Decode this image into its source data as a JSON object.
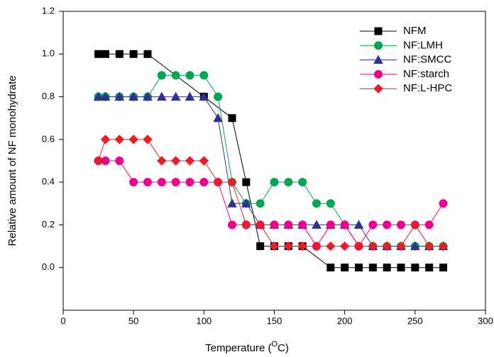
{
  "chart_data": {
    "type": "line",
    "x_label": [
      "Temperature (",
      "O",
      "C)"
    ],
    "y_label": "Relative amount of NF monohydrate",
    "xlim": [
      0,
      300
    ],
    "xticks": [
      0,
      50,
      100,
      150,
      200,
      250,
      300
    ],
    "ylim": [
      -0.2,
      1.2
    ],
    "yticks": [
      {
        "value": 0,
        "label": "0.0"
      },
      {
        "value": 0.2,
        "label": "0.2"
      },
      {
        "value": 0.4,
        "label": "0.4"
      },
      {
        "value": 0.6,
        "label": "0.6"
      },
      {
        "value": 0.8,
        "label": "0.8"
      },
      {
        "value": 1.0,
        "label": "1.0"
      },
      {
        "value": 1.2,
        "label": "1.2"
      }
    ],
    "legend": "top-right",
    "series": [
      {
        "name": "NFM",
        "color": "#000000",
        "marker": "square",
        "x": [
          25,
          30,
          40,
          50,
          60,
          100,
          120,
          130,
          140,
          150,
          160,
          170,
          190,
          200,
          210,
          220,
          230,
          240,
          250,
          260,
          270
        ],
        "values": [
          1.0,
          1.0,
          1.0,
          1.0,
          1.0,
          0.8,
          0.7,
          0.4,
          0.1,
          0.1,
          0.1,
          0.1,
          0,
          0,
          0,
          0,
          0,
          0,
          0,
          0,
          0
        ]
      },
      {
        "name": "NF:LMH",
        "color": "#00a651",
        "marker": "circle",
        "x": [
          25,
          30,
          40,
          50,
          60,
          70,
          80,
          90,
          100,
          110,
          120,
          130,
          140,
          150,
          160,
          170,
          180,
          190,
          200,
          210,
          220,
          230,
          240,
          250,
          260,
          270
        ],
        "values": [
          0.8,
          0.8,
          0.8,
          0.8,
          0.8,
          0.9,
          0.9,
          0.9,
          0.9,
          0.8,
          0.4,
          0.3,
          0.3,
          0.4,
          0.4,
          0.4,
          0.3,
          0.3,
          0.2,
          0.1,
          0.1,
          0.1,
          0.1,
          0.1,
          0.1,
          0.1
        ]
      },
      {
        "name": "NF:SMCC",
        "color": "#2e3192",
        "marker": "triangle",
        "x": [
          25,
          30,
          40,
          50,
          60,
          70,
          80,
          90,
          100,
          110,
          120,
          130,
          140,
          150,
          160,
          170,
          180,
          190,
          200,
          210,
          220,
          230,
          240,
          250,
          260,
          270
        ],
        "values": [
          0.8,
          0.8,
          0.8,
          0.8,
          0.8,
          0.8,
          0.8,
          0.8,
          0.8,
          0.7,
          0.3,
          0.3,
          0.2,
          0.2,
          0.2,
          0.2,
          0.2,
          0.2,
          0.2,
          0.2,
          0.1,
          0.1,
          0.1,
          0.1,
          0.1,
          0.1
        ]
      },
      {
        "name": "NF:starch",
        "color": "#ec008c",
        "marker": "circle",
        "x": [
          25,
          30,
          40,
          50,
          60,
          70,
          80,
          90,
          100,
          110,
          120,
          130,
          140,
          150,
          160,
          170,
          180,
          190,
          200,
          210,
          220,
          230,
          240,
          250,
          260,
          270
        ],
        "values": [
          0.5,
          0.5,
          0.5,
          0.4,
          0.4,
          0.4,
          0.4,
          0.4,
          0.4,
          0.4,
          0.2,
          0.2,
          0.2,
          0.2,
          0.2,
          0.2,
          0.1,
          0.2,
          0.2,
          0.1,
          0.2,
          0.2,
          0.2,
          0.2,
          0.2,
          0.3
        ]
      },
      {
        "name": "NF:L-HPC",
        "color": "#ed1c24",
        "marker": "diamond",
        "x": [
          25,
          30,
          40,
          50,
          60,
          70,
          80,
          90,
          100,
          110,
          120,
          130,
          140,
          150,
          160,
          170,
          180,
          190,
          200,
          210,
          220,
          230,
          240,
          250,
          260,
          270
        ],
        "values": [
          0.5,
          0.6,
          0.6,
          0.6,
          0.6,
          0.5,
          0.5,
          0.5,
          0.5,
          0.4,
          0.4,
          0.2,
          0.2,
          0.1,
          0.1,
          0.1,
          0.1,
          0.1,
          0.1,
          0.1,
          0.1,
          0.1,
          0.1,
          0.2,
          0.1,
          0.1
        ]
      }
    ]
  }
}
